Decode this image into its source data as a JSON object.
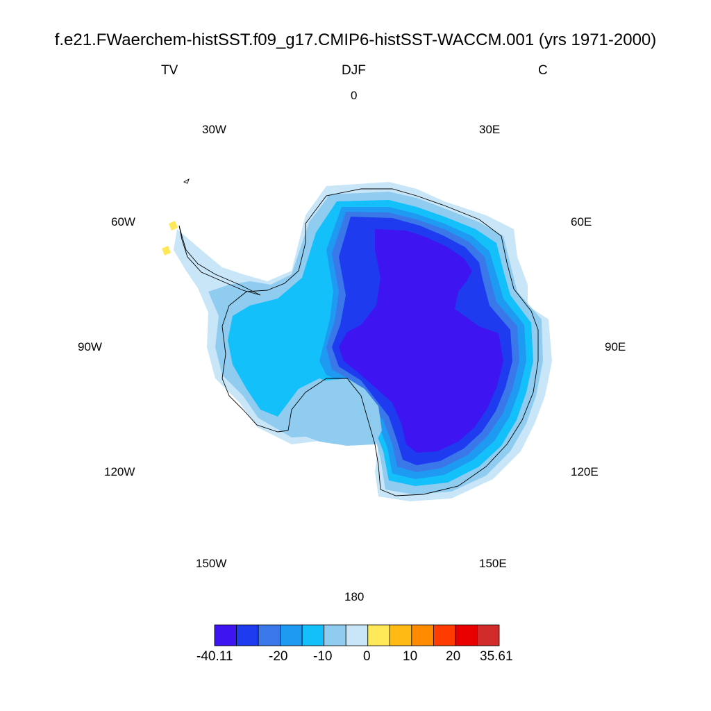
{
  "title": "f.e21.FWaerchem-histSST.f09_g17.CMIP6-histSST-WACCM.001 (yrs 1971-2000)",
  "left_label": "TV",
  "center_label": "DJF",
  "right_label": "C",
  "longitude_labels": [
    "0",
    "30E",
    "60E",
    "90E",
    "120E",
    "150E",
    "180",
    "150W",
    "120W",
    "90W",
    "60W",
    "30W"
  ],
  "colorbar": {
    "colors": [
      "#3e15f0",
      "#1e3bf0",
      "#3a78ea",
      "#1e9af2",
      "#14c0fa",
      "#90ccf0",
      "#c8e6f7",
      "#ffe857",
      "#ffbb14",
      "#ff8c00",
      "#ff3c00",
      "#e80000",
      "#d22b2b"
    ],
    "tick_labels": [
      "-40.11",
      "-20",
      "-10",
      "0",
      "10",
      "20",
      "35.61"
    ]
  }
}
